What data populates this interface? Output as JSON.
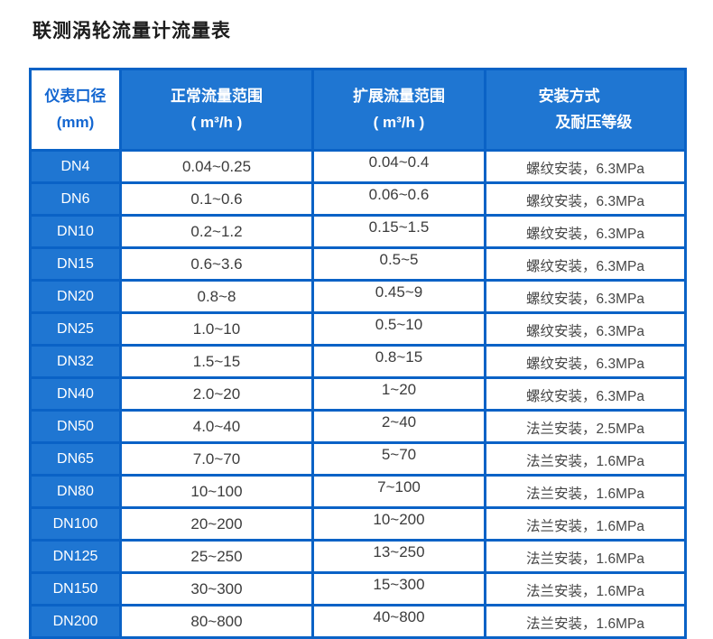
{
  "page_title": "联测涡轮流量计流量表",
  "colors": {
    "cell_blue": "#1f76d2",
    "border_blue": "#0a62c6",
    "header_text_blue": "#1467d1",
    "body_text": "#3c3c3c"
  },
  "table": {
    "headers": {
      "diameter_line1": "仪表口径",
      "diameter_line2": "(mm)",
      "normal_line1": "正常流量范围",
      "normal_line2": "( m³/h )",
      "extended_line1": "扩展流量范围",
      "extended_line2": "( m³/h )",
      "install_line1": "安装方式",
      "install_line2": "及耐压等级"
    },
    "rows": [
      {
        "dn": "DN4",
        "normal": "0.04~0.25",
        "extended": "0.04~0.4",
        "install": "螺纹安装，6.3MPa"
      },
      {
        "dn": "DN6",
        "normal": "0.1~0.6",
        "extended": "0.06~0.6",
        "install": "螺纹安装，6.3MPa"
      },
      {
        "dn": "DN10",
        "normal": "0.2~1.2",
        "extended": "0.15~1.5",
        "install": "螺纹安装，6.3MPa"
      },
      {
        "dn": "DN15",
        "normal": "0.6~3.6",
        "extended": "0.5~5",
        "install": "螺纹安装，6.3MPa"
      },
      {
        "dn": "DN20",
        "normal": "0.8~8",
        "extended": "0.45~9",
        "install": "螺纹安装，6.3MPa"
      },
      {
        "dn": "DN25",
        "normal": "1.0~10",
        "extended": "0.5~10",
        "install": "螺纹安装，6.3MPa"
      },
      {
        "dn": "DN32",
        "normal": "1.5~15",
        "extended": "0.8~15",
        "install": "螺纹安装，6.3MPa"
      },
      {
        "dn": "DN40",
        "normal": "2.0~20",
        "extended": "1~20",
        "install": "螺纹安装，6.3MPa"
      },
      {
        "dn": "DN50",
        "normal": "4.0~40",
        "extended": "2~40",
        "install": "法兰安装，2.5MPa"
      },
      {
        "dn": "DN65",
        "normal": "7.0~70",
        "extended": "5~70",
        "install": "法兰安装，1.6MPa"
      },
      {
        "dn": "DN80",
        "normal": "10~100",
        "extended": "7~100",
        "install": "法兰安装，1.6MPa"
      },
      {
        "dn": "DN100",
        "normal": "20~200",
        "extended": "10~200",
        "install": "法兰安装，1.6MPa"
      },
      {
        "dn": "DN125",
        "normal": "25~250",
        "extended": "13~250",
        "install": "法兰安装，1.6MPa"
      },
      {
        "dn": "DN150",
        "normal": "30~300",
        "extended": "15~300",
        "install": "法兰安装，1.6MPa"
      },
      {
        "dn": "DN200",
        "normal": "80~800",
        "extended": "40~800",
        "install": "法兰安装，1.6MPa"
      }
    ]
  }
}
